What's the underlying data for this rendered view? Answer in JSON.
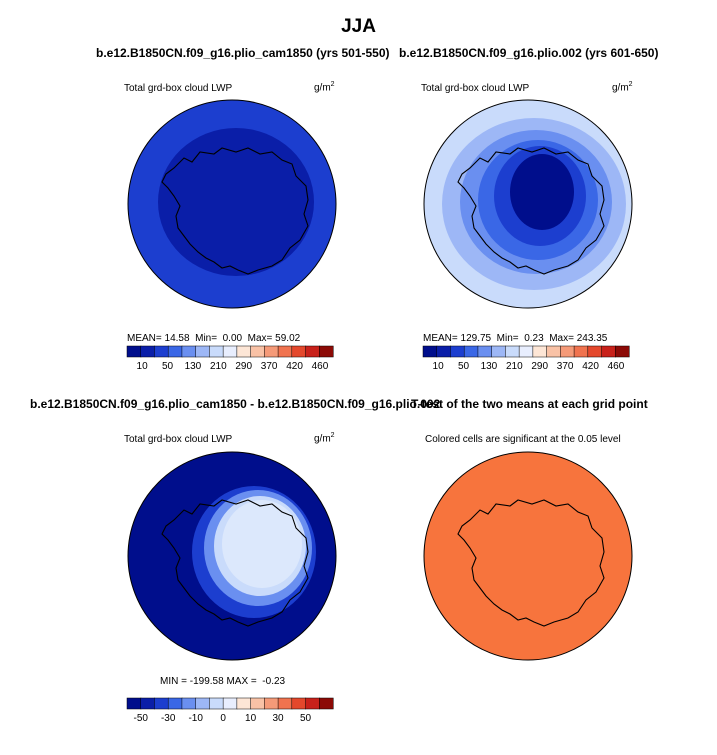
{
  "season": "JJA",
  "panels": {
    "top_left": {
      "title": "b.e12.B1850CN.f09_g16.plio_cam1850 (yrs 501-550)",
      "variable": "Total grd-box cloud LWP",
      "units": "g/m",
      "units_exp": "2",
      "stats": {
        "mean_label": "MEAN=",
        "mean_value": "14.58",
        "min_label": "Min=",
        "min_value": "0.00",
        "max_label": "Max=",
        "max_value": "59.02"
      }
    },
    "top_right": {
      "title": "b.e12.B1850CN.f09_g16.plio.002 (yrs 601-650)",
      "variable": "Total grd-box cloud LWP",
      "units": "g/m",
      "units_exp": "2",
      "stats": {
        "mean_label": "MEAN=",
        "mean_value": "129.75",
        "min_label": "Min=",
        "min_value": "0.23",
        "max_label": "Max=",
        "max_value": "243.35"
      }
    },
    "bottom_left": {
      "title": "b.e12.B1850CN.f09_g16.plio_cam1850 - b.e12.B1850CN.f09_g16.plio.002",
      "variable": "Total grd-box cloud LWP",
      "units": "g/m",
      "units_exp": "2",
      "stats": {
        "min_label": "MIN =",
        "min_value": "-199.58",
        "max_label": "MAX =",
        "max_value": "-0.23"
      }
    },
    "bottom_right": {
      "title": "T-test of the two means at each grid point",
      "subtitle": "Colored cells are significant at the 0.05 level"
    }
  },
  "colors": {
    "fill_top_left": "#1c3ecf",
    "fill_top_left_inner": "#0a1ea8",
    "fill_diff": "#000e8c",
    "fill_ttest": "#f7743d",
    "coast": "#000000",
    "scale": [
      "#000e8c",
      "#0a1ea8",
      "#1c3ecf",
      "#3a67e6",
      "#6a8ff0",
      "#9db7f6",
      "#c9dbfb",
      "#e8eefe",
      "#fde6d6",
      "#f9c2a6",
      "#f59a78",
      "#f0734f",
      "#e4482c",
      "#c8211a",
      "#8c0a06"
    ]
  },
  "chart_data": [
    {
      "type": "heatmap",
      "title": "b.e12.B1850CN.f09_g16.plio_cam1850 (yrs 501-550)",
      "projection": "south polar stereographic",
      "variable": "Total grd-box cloud LWP",
      "units": "g/m^2",
      "colorbar_ticks": [
        "10",
        "50",
        "130",
        "210",
        "290",
        "370",
        "420",
        "460"
      ],
      "mean": 14.58,
      "min": 0.0,
      "max": 59.02
    },
    {
      "type": "heatmap",
      "title": "b.e12.B1850CN.f09_g16.plio.002 (yrs 601-650)",
      "projection": "south polar stereographic",
      "variable": "Total grd-box cloud LWP",
      "units": "g/m^2",
      "colorbar_ticks": [
        "10",
        "50",
        "130",
        "210",
        "290",
        "370",
        "420",
        "460"
      ],
      "mean": 129.75,
      "min": 0.23,
      "max": 243.35
    },
    {
      "type": "heatmap",
      "title": "b.e12.B1850CN.f09_g16.plio_cam1850 - b.e12.B1850CN.f09_g16.plio.002",
      "projection": "south polar stereographic",
      "variable": "Total grd-box cloud LWP",
      "units": "g/m^2",
      "colorbar_ticks": [
        "-50",
        "-30",
        "-10",
        "0",
        "10",
        "30",
        "50"
      ],
      "min": -199.58,
      "max": -0.23
    },
    {
      "type": "heatmap",
      "title": "T-test of the two means at each grid point",
      "subtitle": "Colored cells are significant at the 0.05 level",
      "projection": "south polar stereographic",
      "significant_everywhere": true
    }
  ]
}
